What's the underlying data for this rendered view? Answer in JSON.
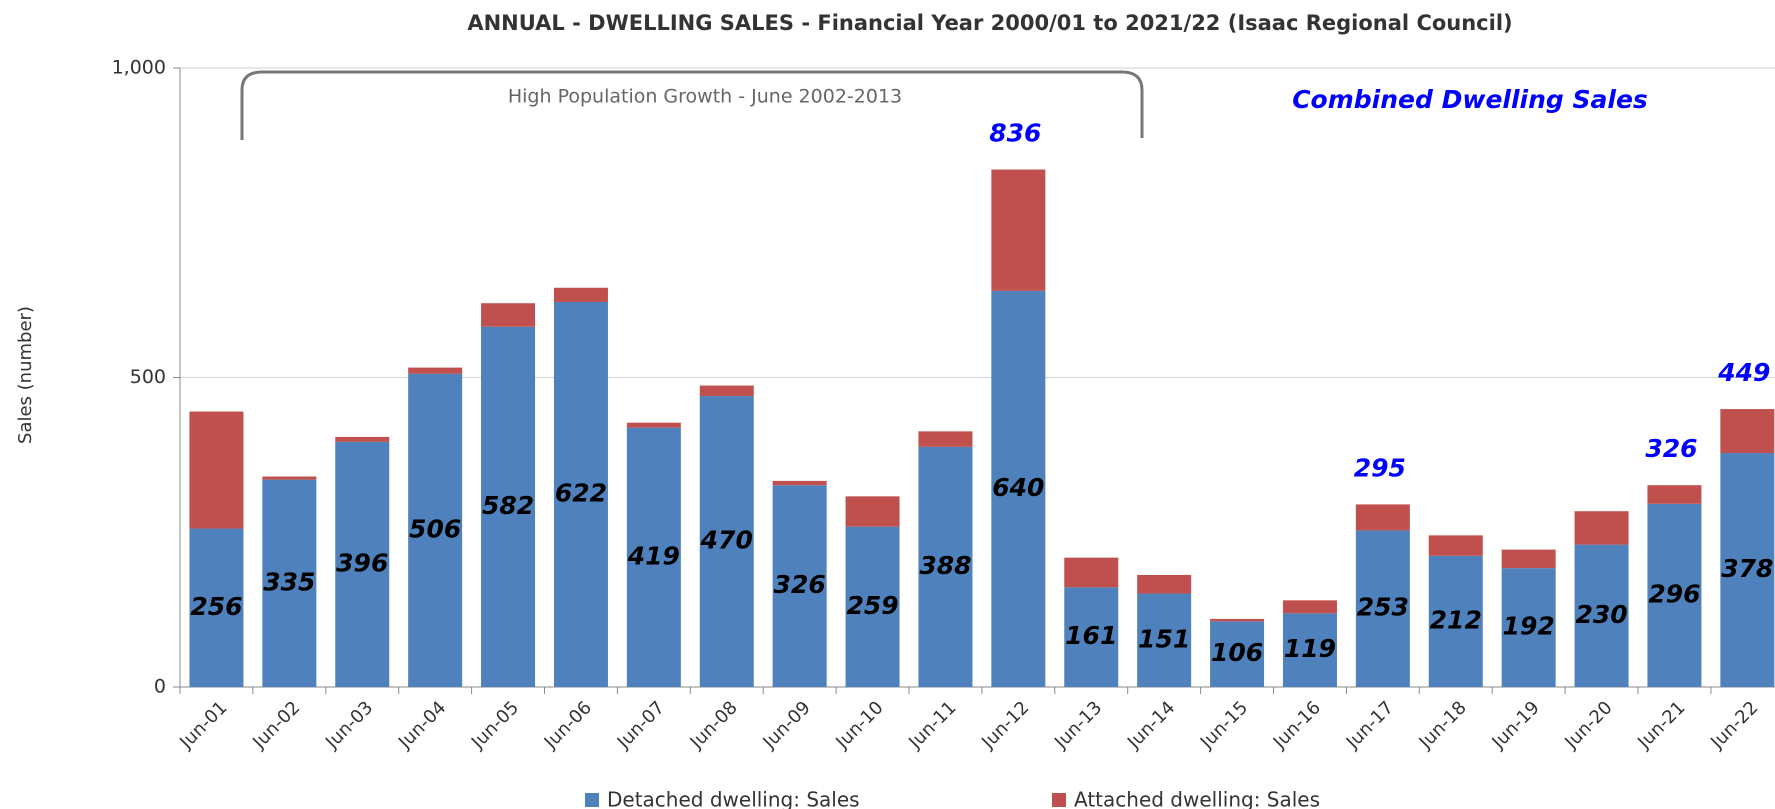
{
  "chart_data": {
    "type": "stacked_bar",
    "title": "ANNUAL - DWELLING SALES - Financial Year 2000/01 to 2021/22 (Isaac Regional Council)",
    "y_label": "Sales (number)",
    "categories": [
      "Jun-01",
      "Jun-02",
      "Jun-03",
      "Jun-04",
      "Jun-05",
      "Jun-06",
      "Jun-07",
      "Jun-08",
      "Jun-09",
      "Jun-10",
      "Jun-11",
      "Jun-12",
      "Jun-13",
      "Jun-14",
      "Jun-15",
      "Jun-16",
      "Jun-17",
      "Jun-18",
      "Jun-19",
      "Jun-20",
      "Jun-21",
      "Jun-22"
    ],
    "series": [
      {
        "name": "Detached dwelling: Sales",
        "color": "#4f81bd",
        "values": [
          256,
          335,
          396,
          506,
          582,
          622,
          419,
          470,
          326,
          259,
          388,
          640,
          161,
          151,
          106,
          119,
          253,
          212,
          192,
          230,
          296,
          378
        ]
      },
      {
        "name": "Attached dwelling: Sales",
        "color": "#c0504d",
        "values": [
          189,
          5,
          8,
          10,
          38,
          23,
          8,
          17,
          7,
          49,
          25,
          196,
          48,
          30,
          4,
          21,
          42,
          33,
          30,
          54,
          30,
          71
        ]
      }
    ],
    "ylim": [
      0,
      1000
    ],
    "yticks": [
      0,
      {
        "value": 500,
        "label": "500"
      },
      {
        "value": 1000,
        "label": "1,000"
      }
    ],
    "grid": true,
    "legend": "bottom",
    "period_note": "High Population Growth - June 2002-2013",
    "series_note": "Combined Dwelling Sales",
    "total_labels": [
      {
        "category": "Jun-12",
        "value": 836
      },
      {
        "category": "Jun-17",
        "value": 295
      },
      {
        "category": "Jun-21",
        "value": 326
      },
      {
        "category": "Jun-22",
        "value": 449
      }
    ]
  }
}
